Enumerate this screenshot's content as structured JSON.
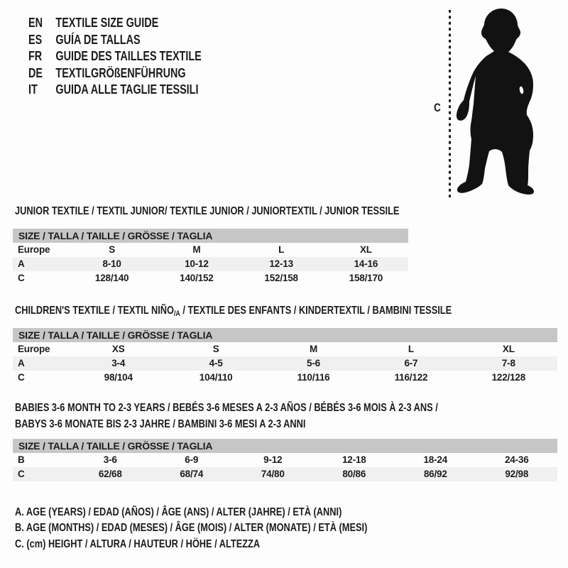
{
  "colors": {
    "text": "#1c1c1c",
    "table_header_bg": "#c6c6c6",
    "row_shaded_bg": "#f0f0f0",
    "silhouette": "#121212",
    "page_bg": "#fdfdfd"
  },
  "header_languages": [
    {
      "code": "EN",
      "title": "TEXTILE SIZE GUIDE"
    },
    {
      "code": "ES",
      "title": "GUÍA DE TALLAS"
    },
    {
      "code": "FR",
      "title": "GUIDE DES TAILLES TEXTILE"
    },
    {
      "code": "DE",
      "title": "TEXTILGRÖßENFÜHRUNG"
    },
    {
      "code": "IT",
      "title": "GUIDA ALLE TAGLIE TESSILI"
    }
  ],
  "figure": {
    "icon": "toddler-silhouette",
    "height_label": "C"
  },
  "sections": [
    {
      "heading": "JUNIOR TEXTILE / TEXTIL JUNIOR/ TEXTILE JUNIOR / JUNIORTEXTIL / JUNIOR TESSILE",
      "table": {
        "header": "SIZE / TALLA / TAILLE / GRÖSSE / TAGLIA",
        "rows": [
          {
            "label": "Europe",
            "values": [
              "S",
              "M",
              "L",
              "XL"
            ],
            "shaded": false
          },
          {
            "label": "A",
            "values": [
              "8-10",
              "10-12",
              "12-13",
              "14-16"
            ],
            "shaded": true
          },
          {
            "label": "C",
            "values": [
              "128/140",
              "140/152",
              "152/158",
              "158/170"
            ],
            "shaded": false
          }
        ]
      }
    },
    {
      "heading_pre": "CHILDREN'S TEXTILE / TEXTIL NIÑO",
      "heading_sub": "/A",
      "heading_post": " / TEXTILE DES ENFANTS / KINDERTEXTIL / BAMBINI TESSILE",
      "table": {
        "header": "SIZE / TALLA / TAILLE / GRÖSSE / TAGLIA",
        "rows": [
          {
            "label": "Europe",
            "values": [
              "XS",
              "S",
              "M",
              "L",
              "XL"
            ],
            "shaded": false
          },
          {
            "label": "A",
            "values": [
              "3-4",
              "4-5",
              "5-6",
              "6-7",
              "7-8"
            ],
            "shaded": true
          },
          {
            "label": "C",
            "values": [
              "98/104",
              "104/110",
              "110/116",
              "116/122",
              "122/128"
            ],
            "shaded": false
          }
        ]
      }
    },
    {
      "heading_line1": "BABIES 3-6 MONTH TO 2-3 YEARS / BEBÉS 3-6 MESES A 2-3 AÑOS / BÉBÉS 3-6 MOIS À 2-3 ANS /",
      "heading_line2": "BABYS 3-6 MONATE BIS 2-3 JAHRE / BAMBINI 3-6 MESI A 2-3 ANNI",
      "table": {
        "header": "SIZE / TALLA / TAILLE / GRÖSSE / TAGLIA",
        "rows": [
          {
            "label": "B",
            "values": [
              "3-6",
              "6-9",
              "9-12",
              "12-18",
              "18-24",
              "24-36"
            ],
            "shaded": false
          },
          {
            "label": "C",
            "values": [
              "62/68",
              "68/74",
              "74/80",
              "80/86",
              "86/92",
              "92/98"
            ],
            "shaded": true
          }
        ]
      }
    }
  ],
  "footnotes": [
    "A. AGE (YEARS) / EDAD (AÑOS) / ÂGE (ANS) / ALTER (JAHRE) / ETÀ (ANNI)",
    "B. AGE (MONTHS) / EDAD (MESES) / ÂGE (MOIS) / ALTER (MONATE) / ETÀ (MESI)",
    "C. (cm) HEIGHT / ALTURA / HAUTEUR / HÖHE / ALTEZZA"
  ]
}
